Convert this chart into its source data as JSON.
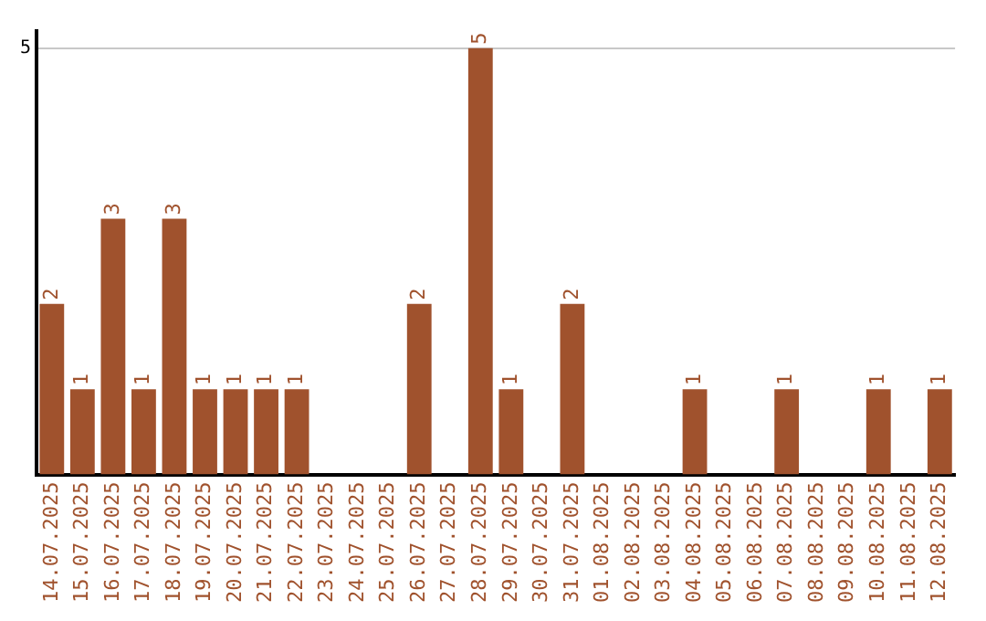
{
  "chart_data": {
    "type": "bar",
    "categories": [
      "14.07.2025",
      "15.07.2025",
      "16.07.2025",
      "17.07.2025",
      "18.07.2025",
      "19.07.2025",
      "20.07.2025",
      "21.07.2025",
      "22.07.2025",
      "23.07.2025",
      "24.07.2025",
      "25.07.2025",
      "26.07.2025",
      "27.07.2025",
      "28.07.2025",
      "29.07.2025",
      "30.07.2025",
      "31.07.2025",
      "01.08.2025",
      "02.08.2025",
      "03.08.2025",
      "04.08.2025",
      "05.08.2025",
      "06.08.2025",
      "07.08.2025",
      "08.08.2025",
      "09.08.2025",
      "10.08.2025",
      "11.08.2025",
      "12.08.2025"
    ],
    "values": [
      2,
      1,
      3,
      1,
      3,
      1,
      1,
      1,
      1,
      0,
      0,
      0,
      2,
      0,
      5,
      1,
      0,
      2,
      0,
      0,
      0,
      1,
      0,
      0,
      1,
      0,
      0,
      1,
      0,
      1
    ],
    "value_labels": [
      "2",
      "1",
      "3",
      "1",
      "3",
      "1",
      "1",
      "1",
      "1",
      null,
      null,
      null,
      "2",
      null,
      "5",
      "1",
      null,
      "2",
      null,
      null,
      null,
      "1",
      null,
      null,
      "1",
      null,
      null,
      "1",
      null,
      "1"
    ],
    "color": "#a0522d",
    "ylim": [
      0,
      5.2
    ],
    "yticks": [
      5
    ],
    "grid": "y",
    "legend": false
  }
}
